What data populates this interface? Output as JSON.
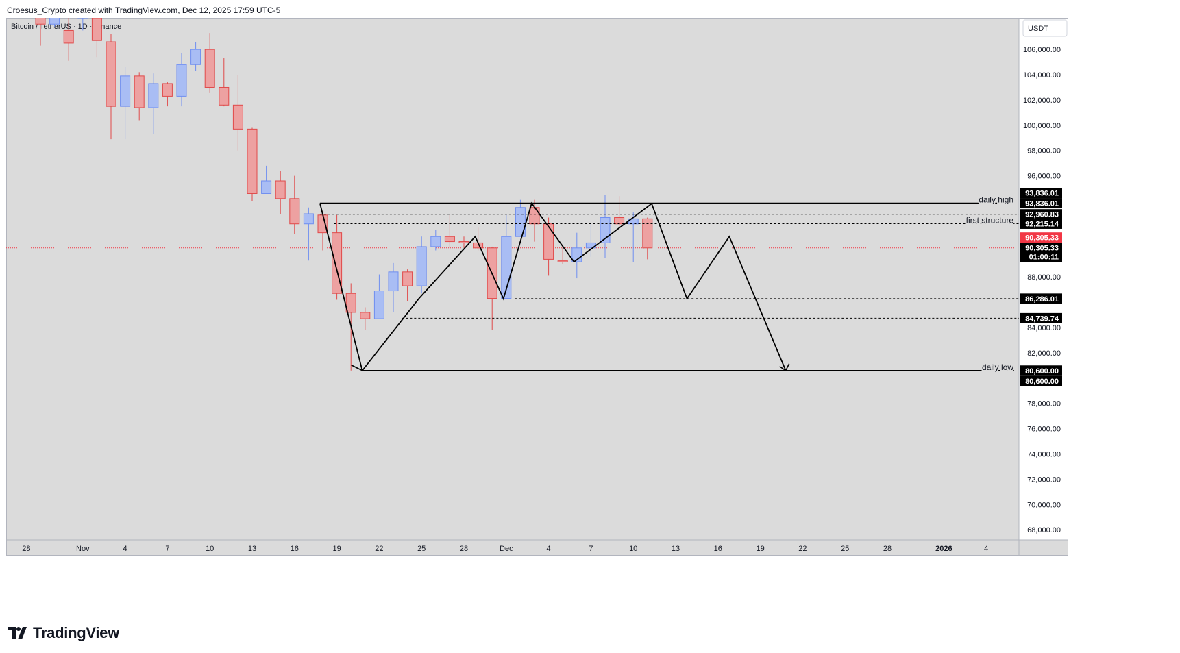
{
  "header": {
    "author_line": "Croesus_Crypto created with TradingView.com, Dec 12, 2025 17:59 UTC-5"
  },
  "chart": {
    "symbol_label": "Bitcoin / TetherUS · 1D · Binance",
    "currency_button": "USDT"
  },
  "brand": {
    "logo_text": "TradingView"
  },
  "colors": {
    "up": "#6f8ef0",
    "up_fill": "#a9bdf4",
    "down": "#e04a4a",
    "down_fill": "#eda1a1",
    "background": "#dbdbdb",
    "label_black": "#000000",
    "current_price_red": "#f23645"
  },
  "chart_data": {
    "type": "candlestick",
    "title": "Bitcoin / TetherUS · 1D · Binance",
    "y_range": [
      67200,
      108500
    ],
    "y_ticks": [
      "106,000.00",
      "104,000.00",
      "102,000.00",
      "100,000.00",
      "98,000.00",
      "96,000.00",
      "88,000.00",
      "84,000.00",
      "82,000.00",
      "78,000.00",
      "76,000.00",
      "74,000.00",
      "72,000.00",
      "70,000.00",
      "68,000.00"
    ],
    "y_tick_values": [
      106000,
      104000,
      102000,
      100000,
      98000,
      96000,
      88000,
      84000,
      82000,
      78000,
      76000,
      74000,
      72000,
      70000,
      68000
    ],
    "x_ticks": [
      {
        "label": "28",
        "bar": -1
      },
      {
        "label": "Nov",
        "bar": 3
      },
      {
        "label": "4",
        "bar": 6
      },
      {
        "label": "7",
        "bar": 9
      },
      {
        "label": "10",
        "bar": 12
      },
      {
        "label": "13",
        "bar": 15
      },
      {
        "label": "16",
        "bar": 18
      },
      {
        "label": "19",
        "bar": 21
      },
      {
        "label": "22",
        "bar": 24
      },
      {
        "label": "25",
        "bar": 27
      },
      {
        "label": "28",
        "bar": 30
      },
      {
        "label": "Dec",
        "bar": 33
      },
      {
        "label": "4",
        "bar": 36
      },
      {
        "label": "7",
        "bar": 39
      },
      {
        "label": "10",
        "bar": 42
      },
      {
        "label": "13",
        "bar": 45
      },
      {
        "label": "16",
        "bar": 48
      },
      {
        "label": "19",
        "bar": 51
      },
      {
        "label": "22",
        "bar": 54
      },
      {
        "label": "25",
        "bar": 57
      },
      {
        "label": "28",
        "bar": 60
      },
      {
        "label": "2026",
        "bar": 64
      },
      {
        "label": "4",
        "bar": 67
      }
    ],
    "candles": [
      {
        "o": 109300,
        "h": 110200,
        "l": 106300,
        "c": 108000
      },
      {
        "o": 108000,
        "h": 110500,
        "l": 107800,
        "c": 110200
      },
      {
        "o": 107500,
        "h": 110000,
        "l": 105100,
        "c": 106500
      },
      {
        "o": 108500,
        "h": 111500,
        "l": 107500,
        "c": 110500
      },
      {
        "o": 108500,
        "h": 110000,
        "l": 105400,
        "c": 106700
      },
      {
        "o": 106600,
        "h": 107200,
        "l": 98900,
        "c": 101500
      },
      {
        "o": 101500,
        "h": 104600,
        "l": 98900,
        "c": 103900
      },
      {
        "o": 103900,
        "h": 104200,
        "l": 100400,
        "c": 101400
      },
      {
        "o": 101400,
        "h": 104100,
        "l": 99300,
        "c": 103300
      },
      {
        "o": 103300,
        "h": 103400,
        "l": 101500,
        "c": 102300
      },
      {
        "o": 102300,
        "h": 105700,
        "l": 101500,
        "c": 104800
      },
      {
        "o": 104800,
        "h": 106600,
        "l": 104300,
        "c": 106000
      },
      {
        "o": 106000,
        "h": 107300,
        "l": 102600,
        "c": 103000
      },
      {
        "o": 103000,
        "h": 105300,
        "l": 101500,
        "c": 101600
      },
      {
        "o": 101600,
        "h": 104000,
        "l": 98000,
        "c": 99700
      },
      {
        "o": 99700,
        "h": 99800,
        "l": 94000,
        "c": 94600
      },
      {
        "o": 94600,
        "h": 96800,
        "l": 94600,
        "c": 95600
      },
      {
        "o": 95600,
        "h": 96400,
        "l": 93000,
        "c": 94200
      },
      {
        "o": 94200,
        "h": 96000,
        "l": 91400,
        "c": 92200
      },
      {
        "o": 92200,
        "h": 93500,
        "l": 89300,
        "c": 93000
      },
      {
        "o": 92900,
        "h": 93200,
        "l": 90100,
        "c": 91500
      },
      {
        "o": 91500,
        "h": 92900,
        "l": 86200,
        "c": 86700
      },
      {
        "o": 86700,
        "h": 87500,
        "l": 80600,
        "c": 85200
      },
      {
        "o": 85200,
        "h": 85600,
        "l": 83800,
        "c": 84700
      },
      {
        "o": 84700,
        "h": 88200,
        "l": 84700,
        "c": 86900
      },
      {
        "o": 86900,
        "h": 89100,
        "l": 85200,
        "c": 88400
      },
      {
        "o": 88400,
        "h": 88600,
        "l": 86100,
        "c": 87300
      },
      {
        "o": 87300,
        "h": 91200,
        "l": 86700,
        "c": 90400
      },
      {
        "o": 90400,
        "h": 91700,
        "l": 90100,
        "c": 91200
      },
      {
        "o": 91200,
        "h": 92900,
        "l": 90300,
        "c": 90800
      },
      {
        "o": 90800,
        "h": 91200,
        "l": 90300,
        "c": 90700
      },
      {
        "o": 90700,
        "h": 91900,
        "l": 90100,
        "c": 90300
      },
      {
        "o": 90300,
        "h": 90400,
        "l": 83800,
        "c": 86300
      },
      {
        "o": 86300,
        "h": 92900,
        "l": 86300,
        "c": 91200
      },
      {
        "o": 91200,
        "h": 94100,
        "l": 91200,
        "c": 93500
      },
      {
        "o": 93500,
        "h": 94100,
        "l": 90800,
        "c": 92200
      },
      {
        "o": 92200,
        "h": 92700,
        "l": 88100,
        "c": 89400
      },
      {
        "o": 89300,
        "h": 90400,
        "l": 89000,
        "c": 89200
      },
      {
        "o": 89200,
        "h": 91500,
        "l": 87900,
        "c": 90300
      },
      {
        "o": 90300,
        "h": 92300,
        "l": 89600,
        "c": 90700
      },
      {
        "o": 90700,
        "h": 94500,
        "l": 89500,
        "c": 92700
      },
      {
        "o": 92700,
        "h": 94400,
        "l": 91800,
        "c": 92200
      },
      {
        "o": 92200,
        "h": 93100,
        "l": 89200,
        "c": 92600
      },
      {
        "o": 92600,
        "h": 92700,
        "l": 89400,
        "c": 90300
      }
    ],
    "levels": [
      {
        "price": 93836.01,
        "label": "daily high",
        "style": "solid",
        "price_label": "93,836.01"
      },
      {
        "price": 92960.83,
        "label": "",
        "style": "dashed",
        "price_label": "92,960.83"
      },
      {
        "price": 92215.14,
        "label": "first structure",
        "style": "dashed",
        "price_label": "92,215.14"
      },
      {
        "price": 86286.01,
        "label": "",
        "style": "dashed",
        "price_label": "86,286.01"
      },
      {
        "price": 84739.74,
        "label": "",
        "style": "dashed",
        "price_label": "84,739.74"
      },
      {
        "price": 80600.0,
        "label": "daily low",
        "style": "solid",
        "price_label": "80,600.00"
      }
    ],
    "price_tags": [
      {
        "price": 93836.01,
        "text": "93,836.01",
        "offset": -1
      },
      {
        "price": 93836.01,
        "text": "93,836.01",
        "offset": 0
      },
      {
        "price": 92960.83,
        "text": "92,960.83",
        "offset": 0
      },
      {
        "price": 92215.14,
        "text": "92,215.14",
        "offset": 0
      },
      {
        "price": 86286.01,
        "text": "86,286.01",
        "offset": 0
      },
      {
        "price": 84739.74,
        "text": "84,739.74",
        "offset": 0
      },
      {
        "price": 80600.0,
        "text": "80,600.00",
        "offset": 0
      },
      {
        "price": 80600.0,
        "text": "80,600.00",
        "offset": 1
      }
    ],
    "current_price": {
      "price": 90305.33,
      "text": "90,305.33",
      "text2": "90,305.33",
      "countdown": "01:00:11"
    },
    "drawing_path": [
      {
        "bar": 19.8,
        "price": 93836
      },
      {
        "bar": 22.8,
        "price": 80600
      },
      {
        "bar": 26.8,
        "price": 86286
      },
      {
        "bar": 30.8,
        "price": 91200
      },
      {
        "bar": 32.8,
        "price": 86286
      },
      {
        "bar": 34.8,
        "price": 93836
      },
      {
        "bar": 37.8,
        "price": 89200
      },
      {
        "bar": 43.3,
        "price": 93800
      },
      {
        "bar": 45.8,
        "price": 86286
      },
      {
        "bar": 48.8,
        "price": 91200
      },
      {
        "bar": 52.8,
        "price": 80600
      }
    ]
  }
}
